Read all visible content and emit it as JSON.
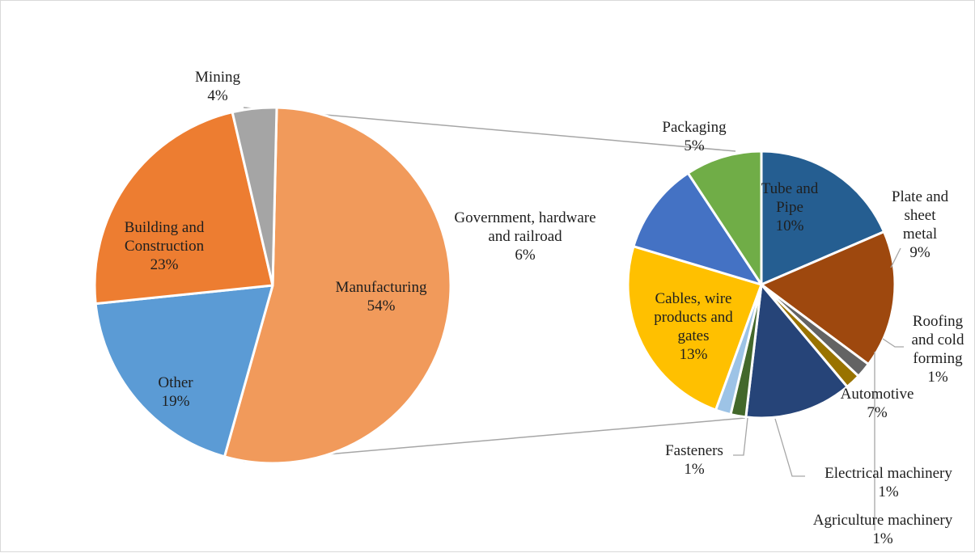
{
  "chart_data": [
    {
      "type": "pie",
      "slices": [
        {
          "label": "Manufacturing",
          "value": 54,
          "value_label": "54%",
          "color": "#F19A5B"
        },
        {
          "label": "Other",
          "value": 19,
          "value_label": "19%",
          "color": "#5B9BD5"
        },
        {
          "label": "Building and Construction",
          "value": 23,
          "value_label": "23%",
          "color": "#ED7D31"
        },
        {
          "label": "Mining",
          "value": 4,
          "value_label": "4%",
          "color": "#A5A5A5"
        }
      ]
    },
    {
      "type": "pie",
      "slices": [
        {
          "label": "Tube and Pipe",
          "value": 10,
          "value_label": "10%",
          "color": "#255E91"
        },
        {
          "label": "Plate and sheet metal",
          "value": 9,
          "value_label": "9%",
          "color": "#9E480E"
        },
        {
          "label": "Roofing and cold forming",
          "value": 1,
          "value_label": "1%",
          "color": "#636363"
        },
        {
          "label": "Agriculture machinery",
          "value": 1,
          "value_label": "1%",
          "color": "#997300"
        },
        {
          "label": "Automotive",
          "value": 7,
          "value_label": "7%",
          "color": "#264478"
        },
        {
          "label": "Electrical machinery",
          "value": 1,
          "value_label": "1%",
          "color": "#43682B"
        },
        {
          "label": "Fasteners",
          "value": 1,
          "value_label": "1%",
          "color": "#9DC3E6"
        },
        {
          "label": "Cables, wire products and gates",
          "value": 13,
          "value_label": "13%",
          "color": "#FFC000"
        },
        {
          "label": "Government, hardware and railroad",
          "value": 6,
          "value_label": "6%",
          "color": "#4472C4"
        },
        {
          "label": "Packaging",
          "value": 5,
          "value_label": "5%",
          "color": "#70AD47"
        }
      ]
    }
  ],
  "labels": {
    "manufacturing": [
      "Manufacturing",
      "54%"
    ],
    "other": [
      "Other",
      "19%"
    ],
    "building": [
      "Building and",
      "Construction",
      "23%"
    ],
    "mining": [
      "Mining",
      "4%"
    ],
    "tube": [
      "Tube and",
      "Pipe",
      "10%"
    ],
    "plate": [
      "Plate and",
      "sheet",
      "metal",
      "9%"
    ],
    "roofing": [
      "Roofing",
      "and cold",
      "forming",
      "1%"
    ],
    "agriculture": [
      "Agriculture machinery",
      "1%"
    ],
    "automotive": [
      "Automotive",
      "7%"
    ],
    "electrical": [
      "Electrical machinery",
      "1%"
    ],
    "fasteners": [
      "Fasteners",
      "1%"
    ],
    "cables": [
      "Cables, wire",
      "products and",
      "gates",
      "13%"
    ],
    "government": [
      "Government, hardware",
      "and railroad",
      "6%"
    ],
    "packaging": [
      "Packaging",
      "5%"
    ]
  },
  "colors": {
    "connector": "#A6A6A6",
    "slice_border": "#FFFFFF"
  }
}
